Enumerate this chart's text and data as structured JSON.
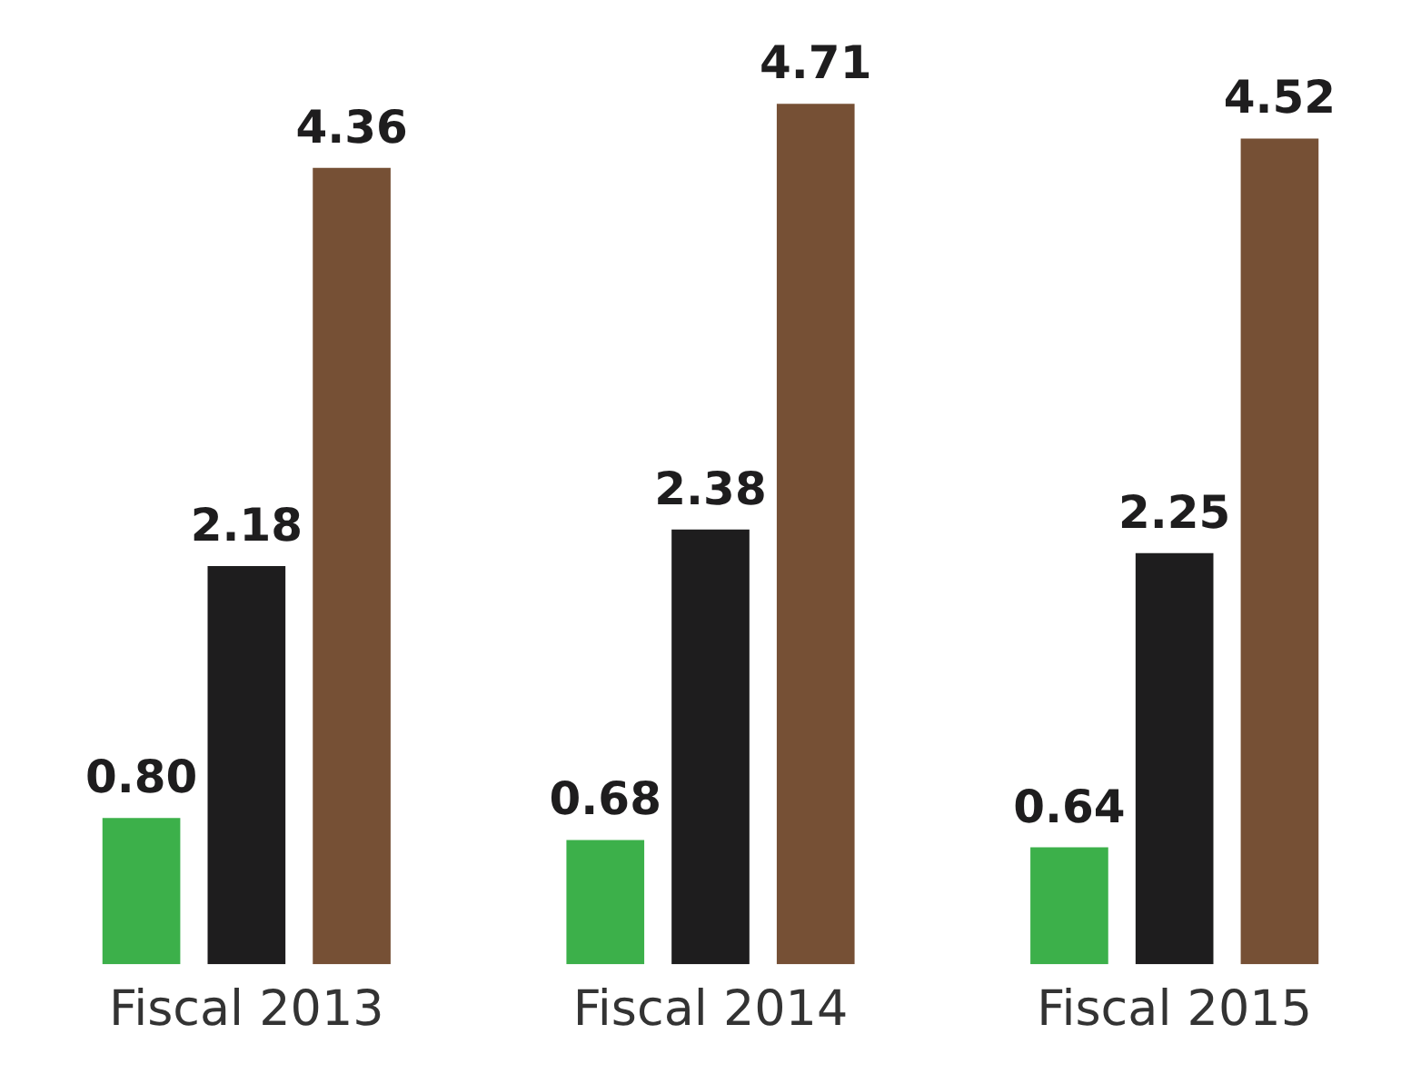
{
  "chart_data": {
    "type": "bar",
    "categories": [
      "Fiscal 2013",
      "Fiscal 2014",
      "Fiscal 2015"
    ],
    "series": [
      {
        "color": "#3cb04a",
        "values": [
          0.8,
          0.68,
          0.64
        ],
        "value_labels": [
          "0.80",
          "0.68",
          "0.64"
        ]
      },
      {
        "color": "#1e1d1e",
        "values": [
          2.18,
          2.38,
          2.25
        ],
        "value_labels": [
          "2.18",
          "2.38",
          "2.25"
        ]
      },
      {
        "color": "#765035",
        "values": [
          4.36,
          4.71,
          4.52
        ],
        "value_labels": [
          "4.36",
          "4.71",
          "4.52"
        ]
      }
    ],
    "grid": false,
    "legend": false,
    "tick_labels": "x"
  }
}
